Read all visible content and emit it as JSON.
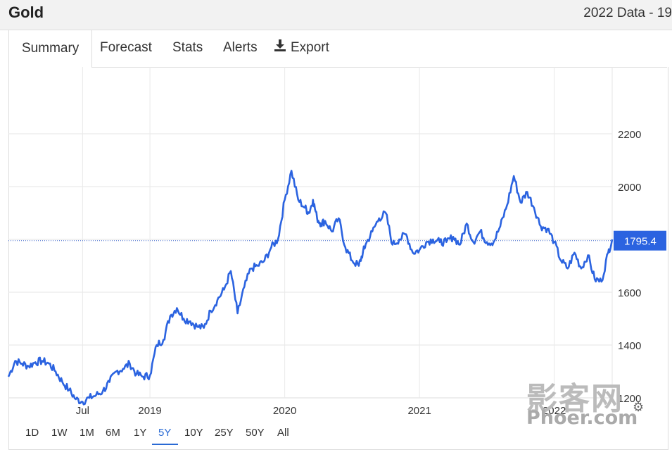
{
  "header": {
    "title": "Gold",
    "subtitle": "2022 Data - 19"
  },
  "tabs": [
    {
      "label": "Summary"
    },
    {
      "label": "Forecast"
    },
    {
      "label": "Stats"
    },
    {
      "label": "Alerts"
    },
    {
      "label": "Export",
      "icon": "download-icon"
    }
  ],
  "ranges": [
    "1D",
    "1W",
    "1M",
    "6M",
    "1Y",
    "5Y",
    "10Y",
    "25Y",
    "50Y",
    "All"
  ],
  "selected_range": "5Y",
  "watermark": {
    "line1": "影客网",
    "line2": "Phoer.com"
  },
  "colors": {
    "line": "#2b63e0",
    "current_label_bg": "#2b63e0",
    "active_range": "#2a6ad4"
  },
  "chart_data": {
    "type": "line",
    "title": "",
    "xlabel": "",
    "ylabel": "",
    "ylim": [
      1000,
      2200
    ],
    "y_ticks": [
      1200,
      1400,
      1600,
      1800,
      2000,
      2200
    ],
    "x_tick_labels": [
      "Jul",
      "2019",
      "2020",
      "2021",
      "2022"
    ],
    "x_ticks": [
      2018.5,
      2019.0,
      2020.0,
      2021.0,
      2022.0
    ],
    "xlim": [
      2017.95,
      2022.43
    ],
    "current_value": "1795.4",
    "current_value_num": 1795.4,
    "grid": true,
    "series": [
      {
        "x": [
          2017.95,
          2018.0,
          2018.05,
          2018.1,
          2018.15,
          2018.2,
          2018.25,
          2018.3,
          2018.35,
          2018.4,
          2018.45,
          2018.5,
          2018.55,
          2018.6,
          2018.65,
          2018.7,
          2018.75,
          2018.8,
          2018.85,
          2018.9,
          2018.95,
          2019.0,
          2019.05,
          2019.1,
          2019.15,
          2019.2,
          2019.25,
          2019.3,
          2019.35,
          2019.4,
          2019.45,
          2019.5,
          2019.55,
          2019.6,
          2019.65,
          2019.7,
          2019.75,
          2019.8,
          2019.85,
          2019.9,
          2019.95,
          2020.0,
          2020.05,
          2020.1,
          2020.15,
          2020.18,
          2020.21,
          2020.24,
          2020.27,
          2020.3,
          2020.35,
          2020.4,
          2020.45,
          2020.5,
          2020.55,
          2020.58,
          2020.6,
          2020.65,
          2020.7,
          2020.75,
          2020.8,
          2020.85,
          2020.9,
          2020.95,
          2021.0,
          2021.05,
          2021.1,
          2021.15,
          2021.2,
          2021.25,
          2021.3,
          2021.35,
          2021.4,
          2021.45,
          2021.5,
          2021.55,
          2021.6,
          2021.65,
          2021.7,
          2021.75,
          2021.8,
          2021.85,
          2021.9,
          2021.95,
          2022.0,
          2022.05,
          2022.1,
          2022.15,
          2022.2,
          2022.25,
          2022.3,
          2022.35,
          2022.4,
          2022.43
        ],
        "y": [
          1280,
          1340,
          1330,
          1320,
          1335,
          1340,
          1330,
          1300,
          1260,
          1230,
          1195,
          1185,
          1200,
          1210,
          1225,
          1260,
          1300,
          1310,
          1330,
          1290,
          1280,
          1285,
          1400,
          1420,
          1510,
          1540,
          1500,
          1490,
          1470,
          1465,
          1530,
          1570,
          1610,
          1680,
          1520,
          1620,
          1690,
          1700,
          1720,
          1770,
          1800,
          1950,
          2060,
          1950,
          1920,
          1900,
          1950,
          1880,
          1860,
          1870,
          1830,
          1880,
          1770,
          1720,
          1700,
          1750,
          1780,
          1830,
          1880,
          1900,
          1780,
          1800,
          1820,
          1750,
          1760,
          1790,
          1800,
          1790,
          1790,
          1810,
          1780,
          1860,
          1790,
          1830,
          1790,
          1790,
          1850,
          1930,
          2040,
          1940,
          1980,
          1920,
          1850,
          1840,
          1790,
          1720,
          1690,
          1750,
          1690,
          1740,
          1650,
          1640,
          1750,
          1800
        ]
      }
    ]
  }
}
